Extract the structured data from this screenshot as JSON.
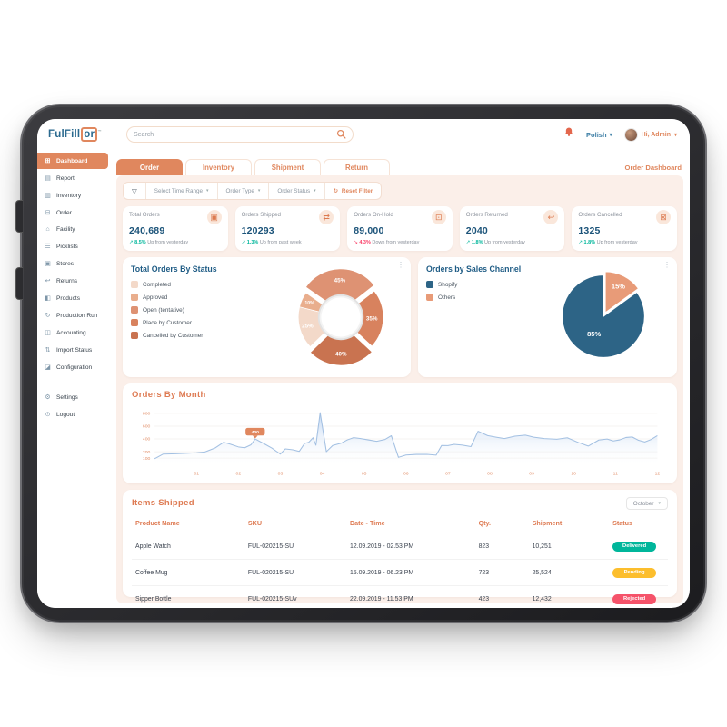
{
  "ui": {
    "caret": "▾",
    "kebab": "⋮"
  },
  "header": {
    "logo_part1": "FulFill",
    "logo_part2": "or",
    "logo_tm": "™",
    "search_placeholder": "Search",
    "language": "Polish",
    "greeting": "Hi, Admin"
  },
  "tabs": {
    "items": [
      {
        "label": "Order",
        "active": true
      },
      {
        "label": "Inventory",
        "active": false
      },
      {
        "label": "Shipment",
        "active": false
      },
      {
        "label": "Return",
        "active": false
      }
    ],
    "page_link": "Order Dashboard"
  },
  "sidebar": {
    "items": [
      {
        "label": "Dashboard",
        "glyph": "⊞",
        "active": true
      },
      {
        "label": "Report",
        "glyph": "▤",
        "active": false
      },
      {
        "label": "Inventory",
        "glyph": "▥",
        "active": false
      },
      {
        "label": "Order",
        "glyph": "⊟",
        "active": false
      },
      {
        "label": "Facility",
        "glyph": "⌂",
        "active": false
      },
      {
        "label": "Picklists",
        "glyph": "☰",
        "active": false
      },
      {
        "label": "Stores",
        "glyph": "▣",
        "active": false
      },
      {
        "label": "Returns",
        "glyph": "↩",
        "active": false
      },
      {
        "label": "Products",
        "glyph": "◧",
        "active": false
      },
      {
        "label": "Production Run",
        "glyph": "↻",
        "active": false
      },
      {
        "label": "Accounting",
        "glyph": "◫",
        "active": false
      },
      {
        "label": "Import Status",
        "glyph": "⇅",
        "active": false
      },
      {
        "label": "Configuration",
        "glyph": "◪",
        "active": false
      }
    ],
    "footer_items": [
      {
        "label": "Settings",
        "glyph": "⚙",
        "active": false
      },
      {
        "label": "Logout",
        "glyph": "⊙",
        "active": false
      }
    ]
  },
  "filter_bar": {
    "funnel_glyph": "▽",
    "time_range": "Select Time Range",
    "order_type": "Order Type",
    "order_status": "Order Status",
    "reset_glyph": "↻",
    "reset_label": "Reset Filter"
  },
  "stats": [
    {
      "label": "Total Orders",
      "value": "240,689",
      "glyph": "▣",
      "change": "8.5%",
      "direction": "up",
      "note": "Up from yesterday"
    },
    {
      "label": "Orders Shipped",
      "value": "120293",
      "glyph": "⇄",
      "change": "1.3%",
      "direction": "up",
      "note": "Up from past week"
    },
    {
      "label": "Orders On-Hold",
      "value": "89,000",
      "glyph": "⊡",
      "change": "4.3%",
      "direction": "down",
      "note": "Down from yesterday"
    },
    {
      "label": "Orders Returned",
      "value": "2040",
      "glyph": "↩",
      "change": "1.8%",
      "direction": "up",
      "note": "Up from yesterday"
    },
    {
      "label": "Orders Cancelled",
      "value": "1325",
      "glyph": "⊠",
      "change": "1.8%",
      "direction": "up",
      "note": "Up from yesterday"
    }
  ],
  "chart_data": [
    {
      "type": "pie",
      "variant": "donut",
      "title": "Total Orders By Status",
      "legend_position": "left",
      "slices": [
        {
          "label": "Completed",
          "value": 25,
          "value_label": "25%",
          "color": "#F3D9C9",
          "start": 226,
          "span": 58,
          "explode": 0
        },
        {
          "label": "Approved",
          "value": 10,
          "value_label": "10%",
          "color": "#E9AE8D",
          "start": 284,
          "span": 21,
          "explode": 0
        },
        {
          "label": "Open (tentative)",
          "value": 45,
          "value_label": "45%",
          "color": "#DE9273",
          "start": -55,
          "span": 107,
          "explode": 7
        },
        {
          "label": "Place by Customer",
          "value": 35,
          "value_label": "35%",
          "color": "#D8825E",
          "start": 52,
          "span": 81,
          "explode": 0
        },
        {
          "label": "Cancelled by Customer",
          "value": 40,
          "value_label": "40%",
          "color": "#C97350",
          "start": 133,
          "span": 93,
          "explode": 7
        }
      ]
    },
    {
      "type": "pie",
      "title": "Orders by Sales Channel",
      "legend_position": "left",
      "slices": [
        {
          "label": "Shopify",
          "value": 85,
          "value_label": "85%",
          "color": "#2D6486",
          "start": 54,
          "span": 306,
          "explode": 0
        },
        {
          "label": "Others",
          "value": 15,
          "value_label": "15%",
          "color": "#E89B78",
          "start": 0,
          "span": 54,
          "explode": 5
        }
      ]
    },
    {
      "type": "area",
      "title": "Orders By Month",
      "x_labels": [
        "01",
        "02",
        "03",
        "04",
        "05",
        "06",
        "07",
        "08",
        "09",
        "10",
        "11",
        "12"
      ],
      "y_ticks": [
        100,
        200,
        400,
        600,
        800
      ],
      "y_max": 850,
      "x_max": 12,
      "line_color": "#A3C0E2",
      "fill_color": "#BFD5F2",
      "axis_label_color": "#E2906B",
      "annotation": {
        "x": 2.4,
        "y": 400,
        "label": "400"
      },
      "points": [
        [
          0,
          90
        ],
        [
          0.2,
          162
        ],
        [
          0.5,
          168
        ],
        [
          0.8,
          176
        ],
        [
          1.0,
          183
        ],
        [
          1.2,
          196
        ],
        [
          1.45,
          260
        ],
        [
          1.65,
          348
        ],
        [
          1.85,
          308
        ],
        [
          2.0,
          275
        ],
        [
          2.15,
          262
        ],
        [
          2.3,
          308
        ],
        [
          2.4,
          400
        ],
        [
          2.6,
          330
        ],
        [
          2.8,
          255
        ],
        [
          3.0,
          162
        ],
        [
          3.12,
          245
        ],
        [
          3.3,
          230
        ],
        [
          3.45,
          205
        ],
        [
          3.58,
          330
        ],
        [
          3.68,
          348
        ],
        [
          3.78,
          418
        ],
        [
          3.85,
          302
        ],
        [
          3.95,
          810
        ],
        [
          4.1,
          200
        ],
        [
          4.25,
          298
        ],
        [
          4.45,
          332
        ],
        [
          4.6,
          385
        ],
        [
          4.75,
          420
        ],
        [
          4.9,
          408
        ],
        [
          5.1,
          385
        ],
        [
          5.3,
          362
        ],
        [
          5.5,
          392
        ],
        [
          5.65,
          450
        ],
        [
          5.82,
          112
        ],
        [
          6.0,
          148
        ],
        [
          6.25,
          158
        ],
        [
          6.5,
          160
        ],
        [
          6.72,
          146
        ],
        [
          6.85,
          298
        ],
        [
          7.0,
          295
        ],
        [
          7.15,
          315
        ],
        [
          7.35,
          303
        ],
        [
          7.55,
          280
        ],
        [
          7.72,
          520
        ],
        [
          7.95,
          452
        ],
        [
          8.15,
          428
        ],
        [
          8.35,
          405
        ],
        [
          8.6,
          442
        ],
        [
          8.85,
          458
        ],
        [
          9.05,
          428
        ],
        [
          9.3,
          405
        ],
        [
          9.6,
          394
        ],
        [
          9.85,
          418
        ],
        [
          10.1,
          348
        ],
        [
          10.35,
          288
        ],
        [
          10.6,
          382
        ],
        [
          10.8,
          398
        ],
        [
          10.95,
          368
        ],
        [
          11.1,
          385
        ],
        [
          11.25,
          422
        ],
        [
          11.4,
          430
        ],
        [
          11.55,
          378
        ],
        [
          11.7,
          352
        ],
        [
          11.85,
          390
        ],
        [
          12,
          452
        ]
      ]
    }
  ],
  "items_shipped": {
    "title": "Items Shipped",
    "month_filter": "October",
    "columns": [
      "Product Name",
      "SKU",
      "Date - Time",
      "Qty.",
      "Shipment",
      "Status"
    ],
    "rows": [
      {
        "product": "Apple Watch",
        "sku": "FUL-020215-SU",
        "datetime": "12.09.2019 - 02.53 PM",
        "qty": "823",
        "shipment": "10,251",
        "status": "Delivered"
      },
      {
        "product": "Coffee Mug",
        "sku": "FUL-020215-SU",
        "datetime": "15.09.2019 - 06.23 PM",
        "qty": "723",
        "shipment": "25,524",
        "status": "Pending"
      },
      {
        "product": "Sipper Bottle",
        "sku": "FUL-020215-SUv",
        "datetime": "22.09.2019 - 11.53 PM",
        "qty": "423",
        "shipment": "12,432",
        "status": "Rejected"
      }
    ],
    "status_colors": {
      "Delivered": "#00B69B",
      "Pending": "#FCBE2D",
      "Rejected": "#F5536A"
    }
  }
}
